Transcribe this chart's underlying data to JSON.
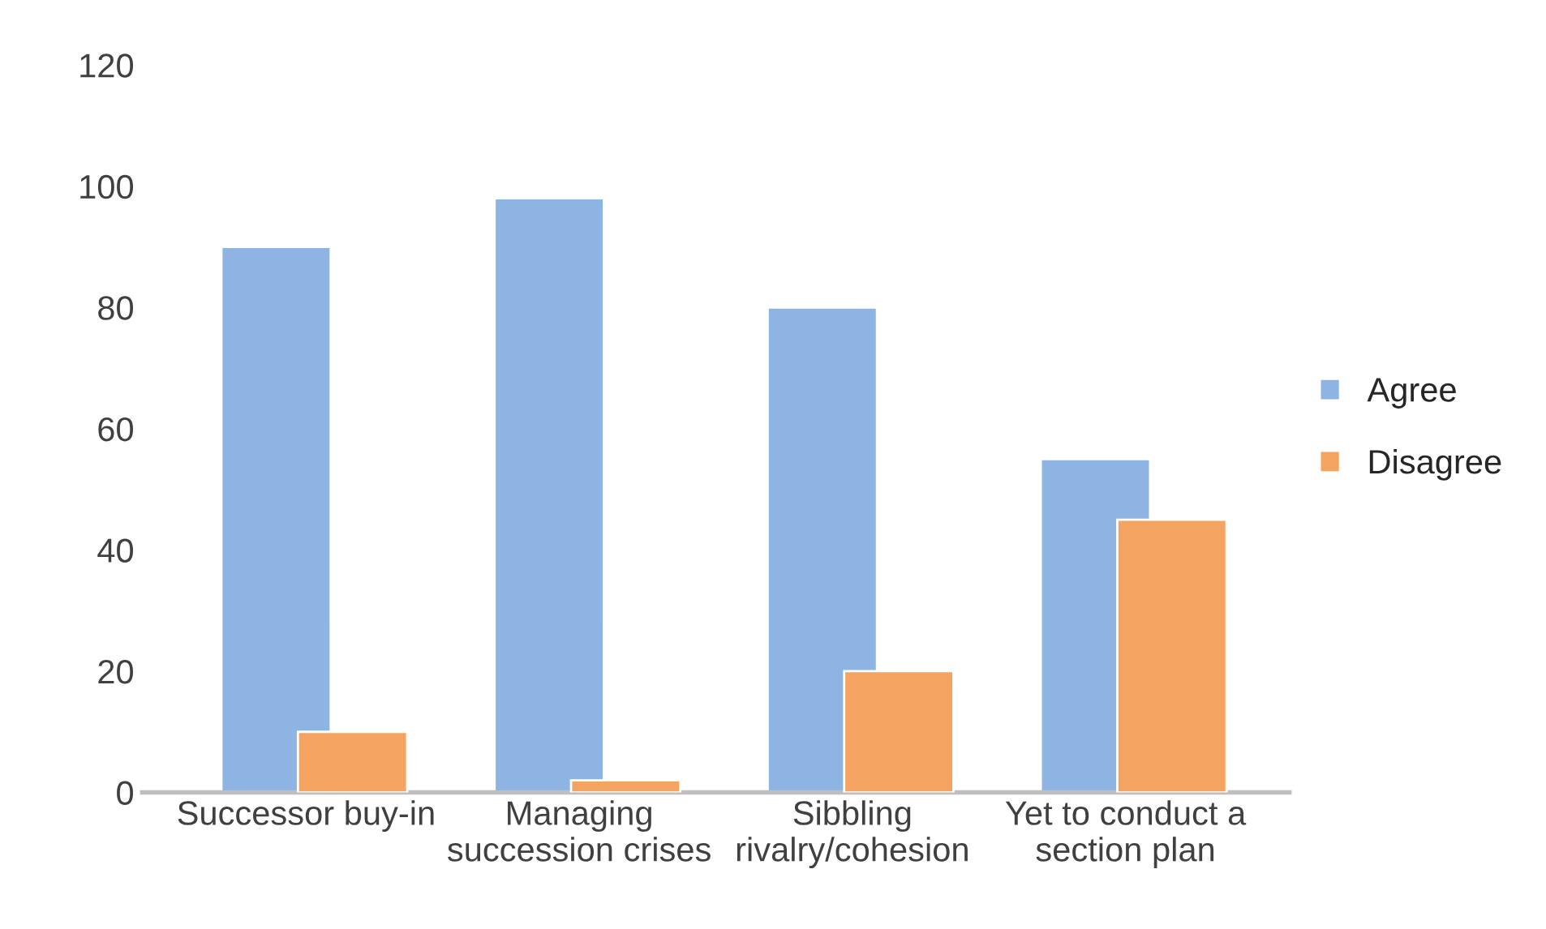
{
  "chart_data": {
    "type": "bar",
    "categories": [
      "Successor buy-in",
      "Managing\nsuccession crises",
      "Sibbling\nrivalry/cohesion",
      "Yet to conduct a\nsection plan"
    ],
    "series": [
      {
        "name": "Agree",
        "color": "#8db4e2",
        "values": [
          90,
          98,
          80,
          55
        ]
      },
      {
        "name": "Disagree",
        "color": "#f4a460",
        "values": [
          10,
          2,
          20,
          45
        ]
      }
    ],
    "ylim": [
      0,
      120
    ],
    "yticks": [
      0,
      20,
      40,
      60,
      80,
      100,
      120
    ],
    "grid": false,
    "legend": "right"
  }
}
